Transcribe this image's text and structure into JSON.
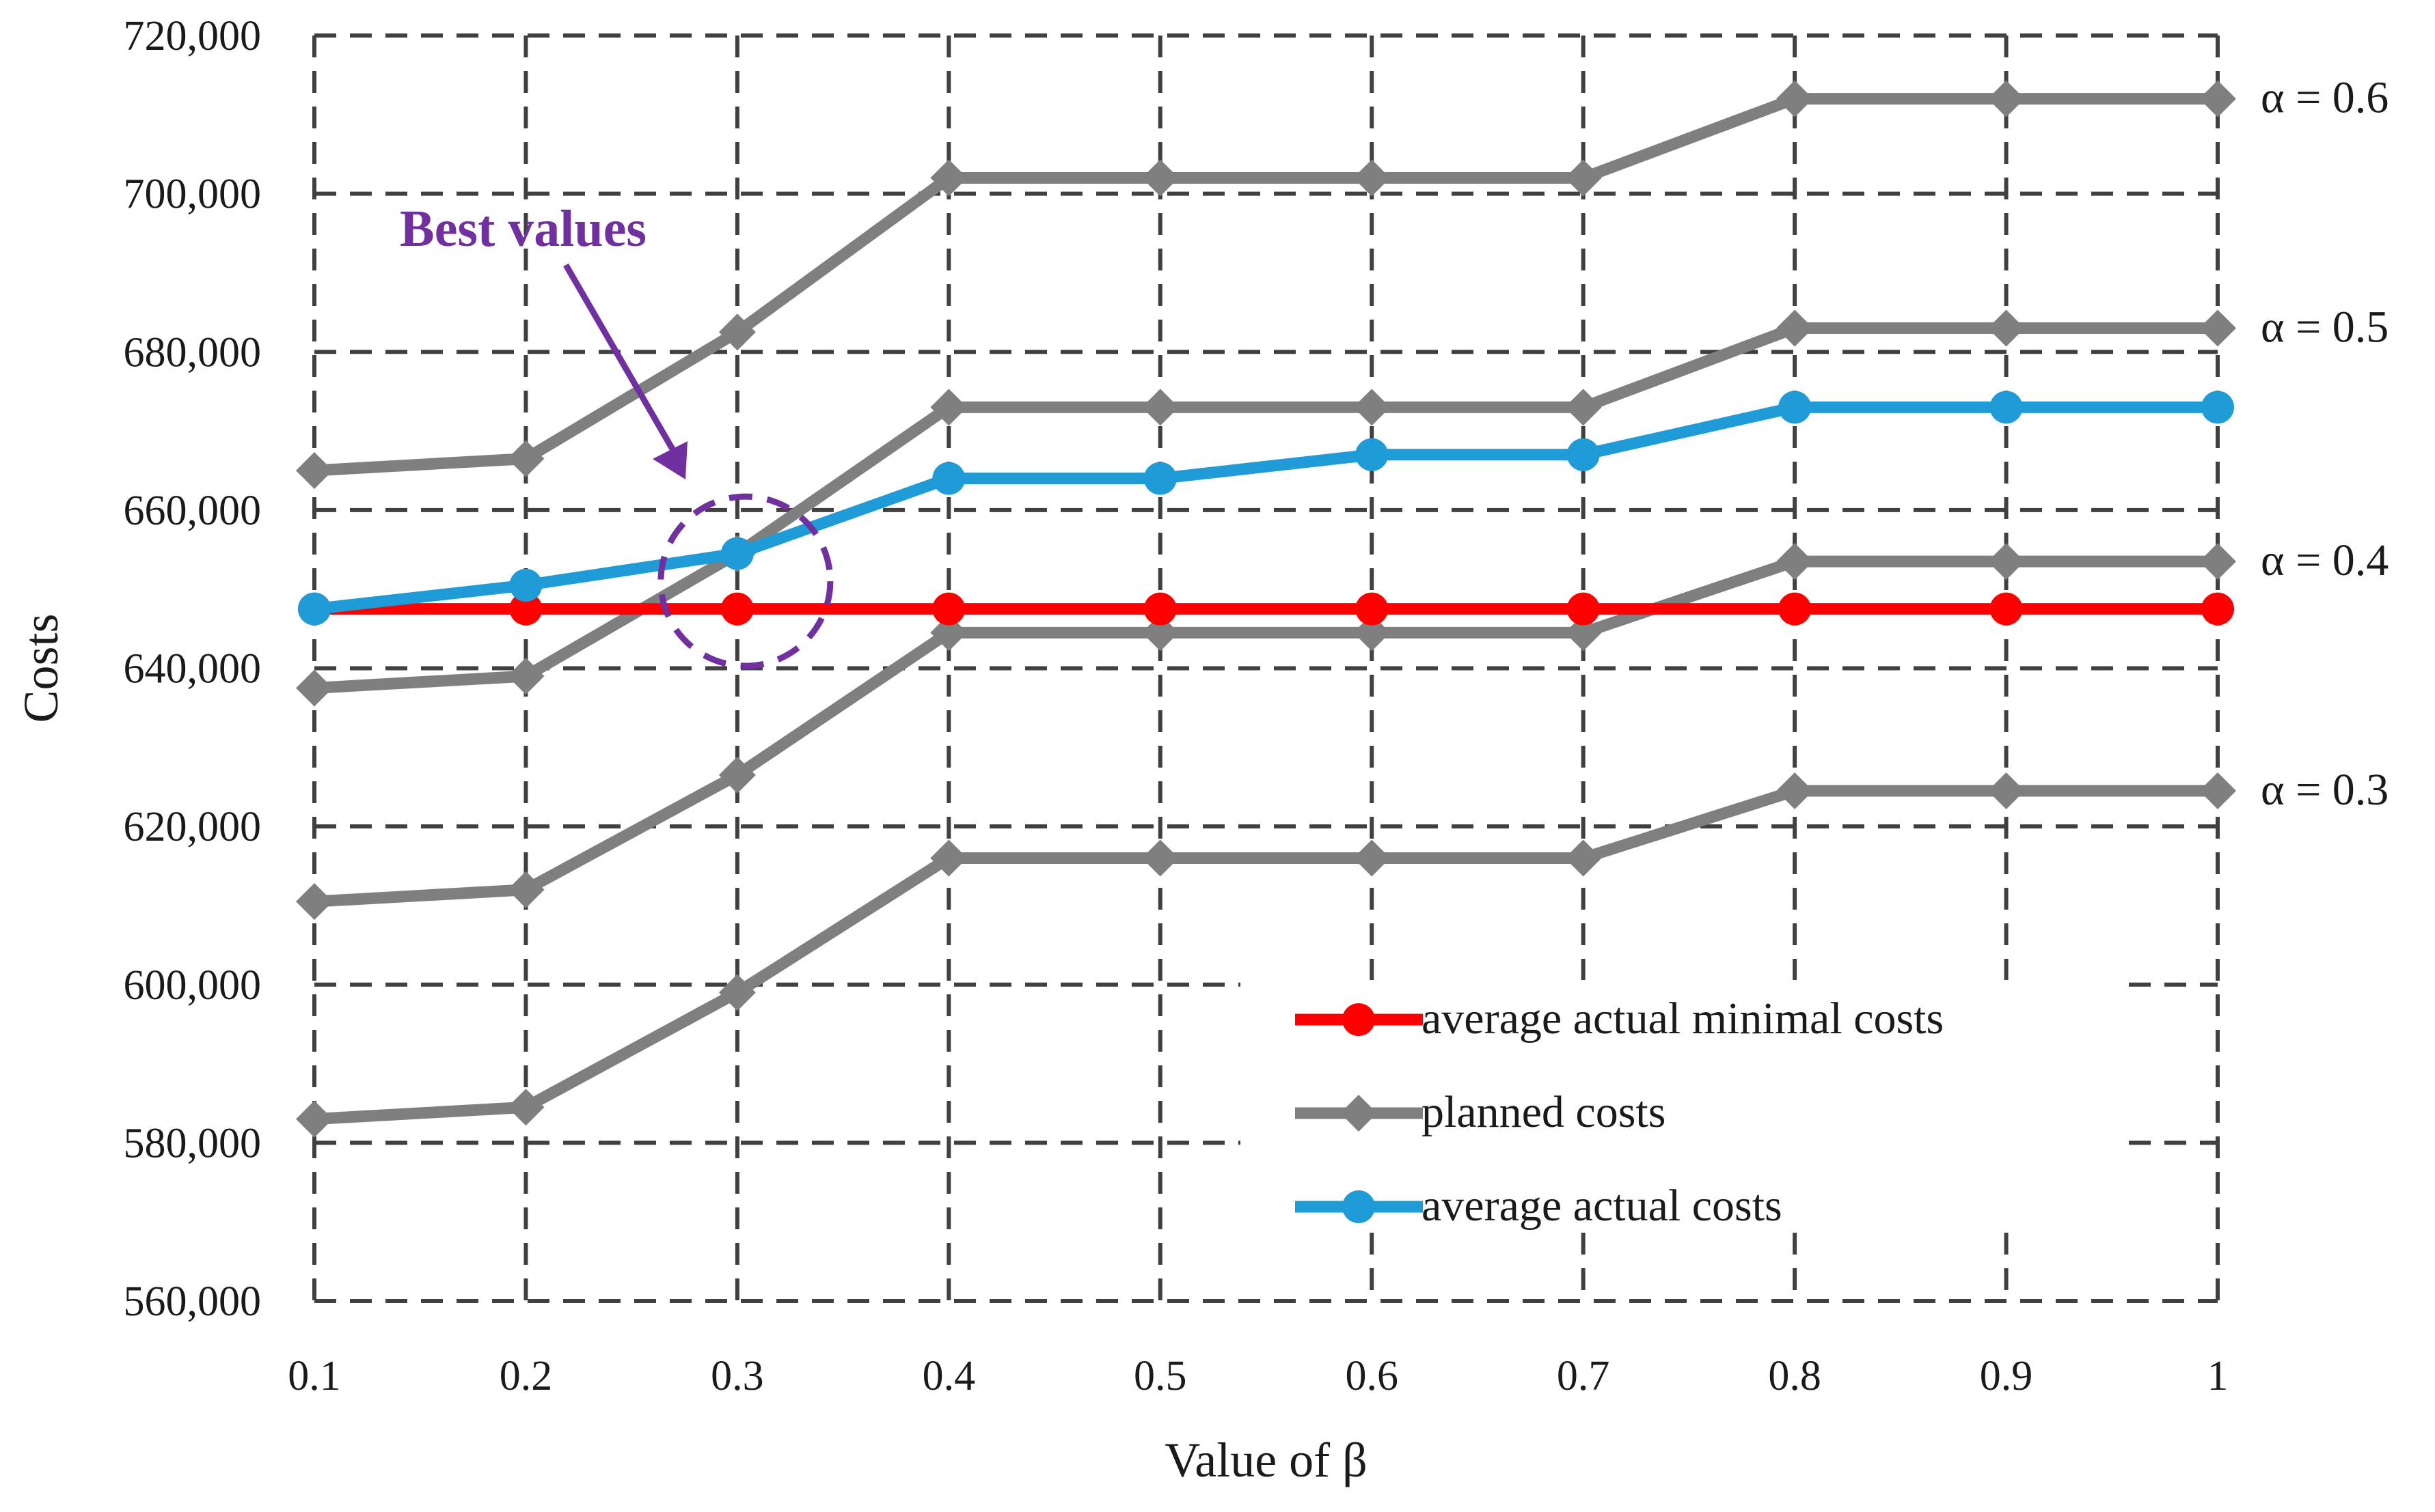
{
  "chart_data": {
    "type": "line",
    "title": "",
    "xlabel": "Value of  β",
    "ylabel": "Costs",
    "x": [
      0.1,
      0.2,
      0.3,
      0.4,
      0.5,
      0.6,
      0.7,
      0.8,
      0.9,
      1
    ],
    "x_tick_labels": [
      "0.1",
      "0.2",
      "0.3",
      "0.4",
      "0.5",
      "0.6",
      "0.7",
      "0.8",
      "0.9",
      "1"
    ],
    "ylim": [
      560000,
      720000
    ],
    "y_ticks": [
      560000,
      580000,
      600000,
      620000,
      640000,
      660000,
      680000,
      700000,
      720000
    ],
    "y_tick_labels": [
      "560,000",
      "580,000",
      "600,000",
      "620,000",
      "640,000",
      "660,000",
      "680,000",
      "700,000",
      "720,000"
    ],
    "grid": true,
    "grid_style": "dashed",
    "legend_position": "bottom-right",
    "colors": {
      "minimal": "#ff0000",
      "planned": "#7f7f7f",
      "actual": "#1f9bd7",
      "annotation": "#7030a0",
      "grid": "#404040"
    },
    "series": [
      {
        "name": "average actual minimal costs",
        "key": "minimal",
        "marker": "circle",
        "values": [
          647500,
          647500,
          647500,
          647500,
          647500,
          647500,
          647500,
          647500,
          647500,
          647500
        ]
      },
      {
        "name": "planned costs",
        "key": "planned",
        "marker": "diamond",
        "label": "α = 0.3",
        "values": [
          583000,
          584500,
          599000,
          616000,
          616000,
          616000,
          616000,
          624500,
          624500,
          624500
        ]
      },
      {
        "name": "planned costs",
        "key": "planned",
        "marker": "diamond",
        "label": "α = 0.4",
        "values": [
          610500,
          612000,
          626500,
          644500,
          644500,
          644500,
          644500,
          653500,
          653500,
          653500
        ]
      },
      {
        "name": "planned costs",
        "key": "planned",
        "marker": "diamond",
        "label": "α = 0.5",
        "values": [
          637500,
          639000,
          654500,
          673000,
          673000,
          673000,
          673000,
          683000,
          683000,
          683000
        ]
      },
      {
        "name": "planned costs",
        "key": "planned",
        "marker": "diamond",
        "label": "α = 0.6",
        "values": [
          665000,
          666500,
          682500,
          702000,
          702000,
          702000,
          702000,
          712000,
          712000,
          712000
        ]
      },
      {
        "name": "average actual costs",
        "key": "actual",
        "marker": "circle",
        "values": [
          647500,
          650500,
          654500,
          664000,
          664000,
          667000,
          667000,
          673000,
          673000,
          673000
        ]
      }
    ],
    "legend": [
      {
        "label": "average actual minimal costs",
        "key": "minimal",
        "marker": "circle"
      },
      {
        "label": "planned costs",
        "key": "planned",
        "marker": "diamond"
      },
      {
        "label": "average actual costs",
        "key": "actual",
        "marker": "circle"
      }
    ],
    "annotation": {
      "text": "Best values",
      "target_x": 0.3,
      "target_y": 651000
    }
  }
}
